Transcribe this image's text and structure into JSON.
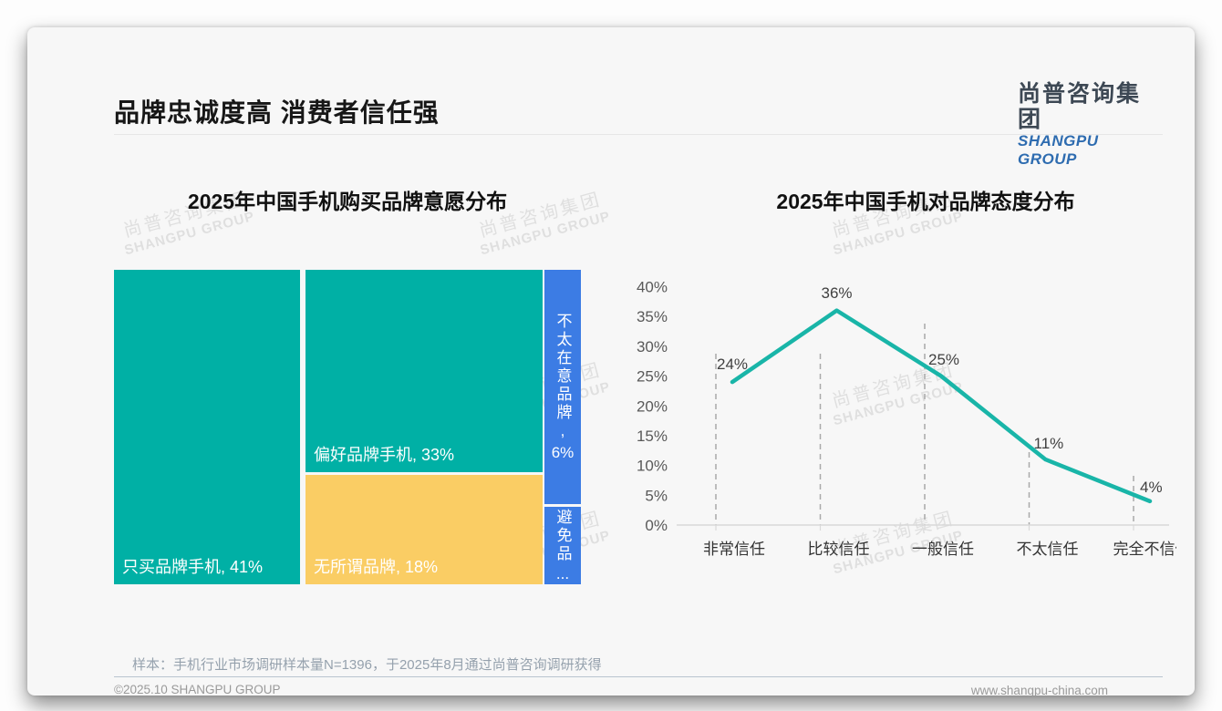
{
  "slide": {
    "title": "品牌忠诚度高 消费者信任强",
    "logo": {
      "cn": "尚普咨询集团",
      "en": "SHANGPU GROUP"
    },
    "watermark": {
      "cn": "尚普咨询集团",
      "en": "SHANGPU GROUP"
    },
    "sample_note": "样本：手机行业市场调研样本量N=1396，于2025年8月通过尚普咨询调研获得",
    "footer_left": "©2025.10 SHANGPU GROUP",
    "footer_right": "www.shangpu-china.com"
  },
  "colors": {
    "teal": "#00B0A5",
    "yellow": "#FACD64",
    "blue": "#3C7CE4",
    "line": "#19B5A8",
    "axis": "#d9d9d9",
    "dash": "#a9a9a9",
    "ytick_text": "#595959",
    "xtick_text": "#333333",
    "datalabel_text": "#404040"
  },
  "chart_data": [
    {
      "type": "treemap",
      "title": "2025年中国手机购买品牌意愿分布",
      "items": [
        {
          "label": "只买品牌手机",
          "value": 41,
          "display": "只买品牌手机, 41%",
          "color": "#00B0A5"
        },
        {
          "label": "偏好品牌手机",
          "value": 33,
          "display": "偏好品牌手机, 33%",
          "color": "#00B0A5"
        },
        {
          "label": "无所谓品牌",
          "value": 18,
          "display": "无所谓品牌, 18%",
          "color": "#FACD64"
        },
        {
          "label": "不太在意品牌",
          "value": 6,
          "display_vertical": "不太在意品牌,",
          "display_pct": "6%",
          "color": "#3C7CE4"
        },
        {
          "display_vertical": "避免品",
          "display_ellipsis": "...",
          "truncated": true,
          "color": "#3C7CE4"
        }
      ]
    },
    {
      "type": "line",
      "title": "2025年中国手机对品牌态度分布",
      "categories": [
        "非常信任",
        "比较信任",
        "一般信任",
        "不太信任",
        "完全不信任"
      ],
      "values": [
        24,
        36,
        25,
        11,
        4
      ],
      "data_labels": [
        "24%",
        "36%",
        "25%",
        "11%",
        "4%"
      ],
      "ylim": [
        0,
        40
      ],
      "yticks": [
        "40%",
        "35%",
        "30%",
        "25%",
        "20%",
        "15%",
        "10%",
        "5%",
        "0%"
      ],
      "grid": "dashed-vertical",
      "legend": "none"
    }
  ]
}
